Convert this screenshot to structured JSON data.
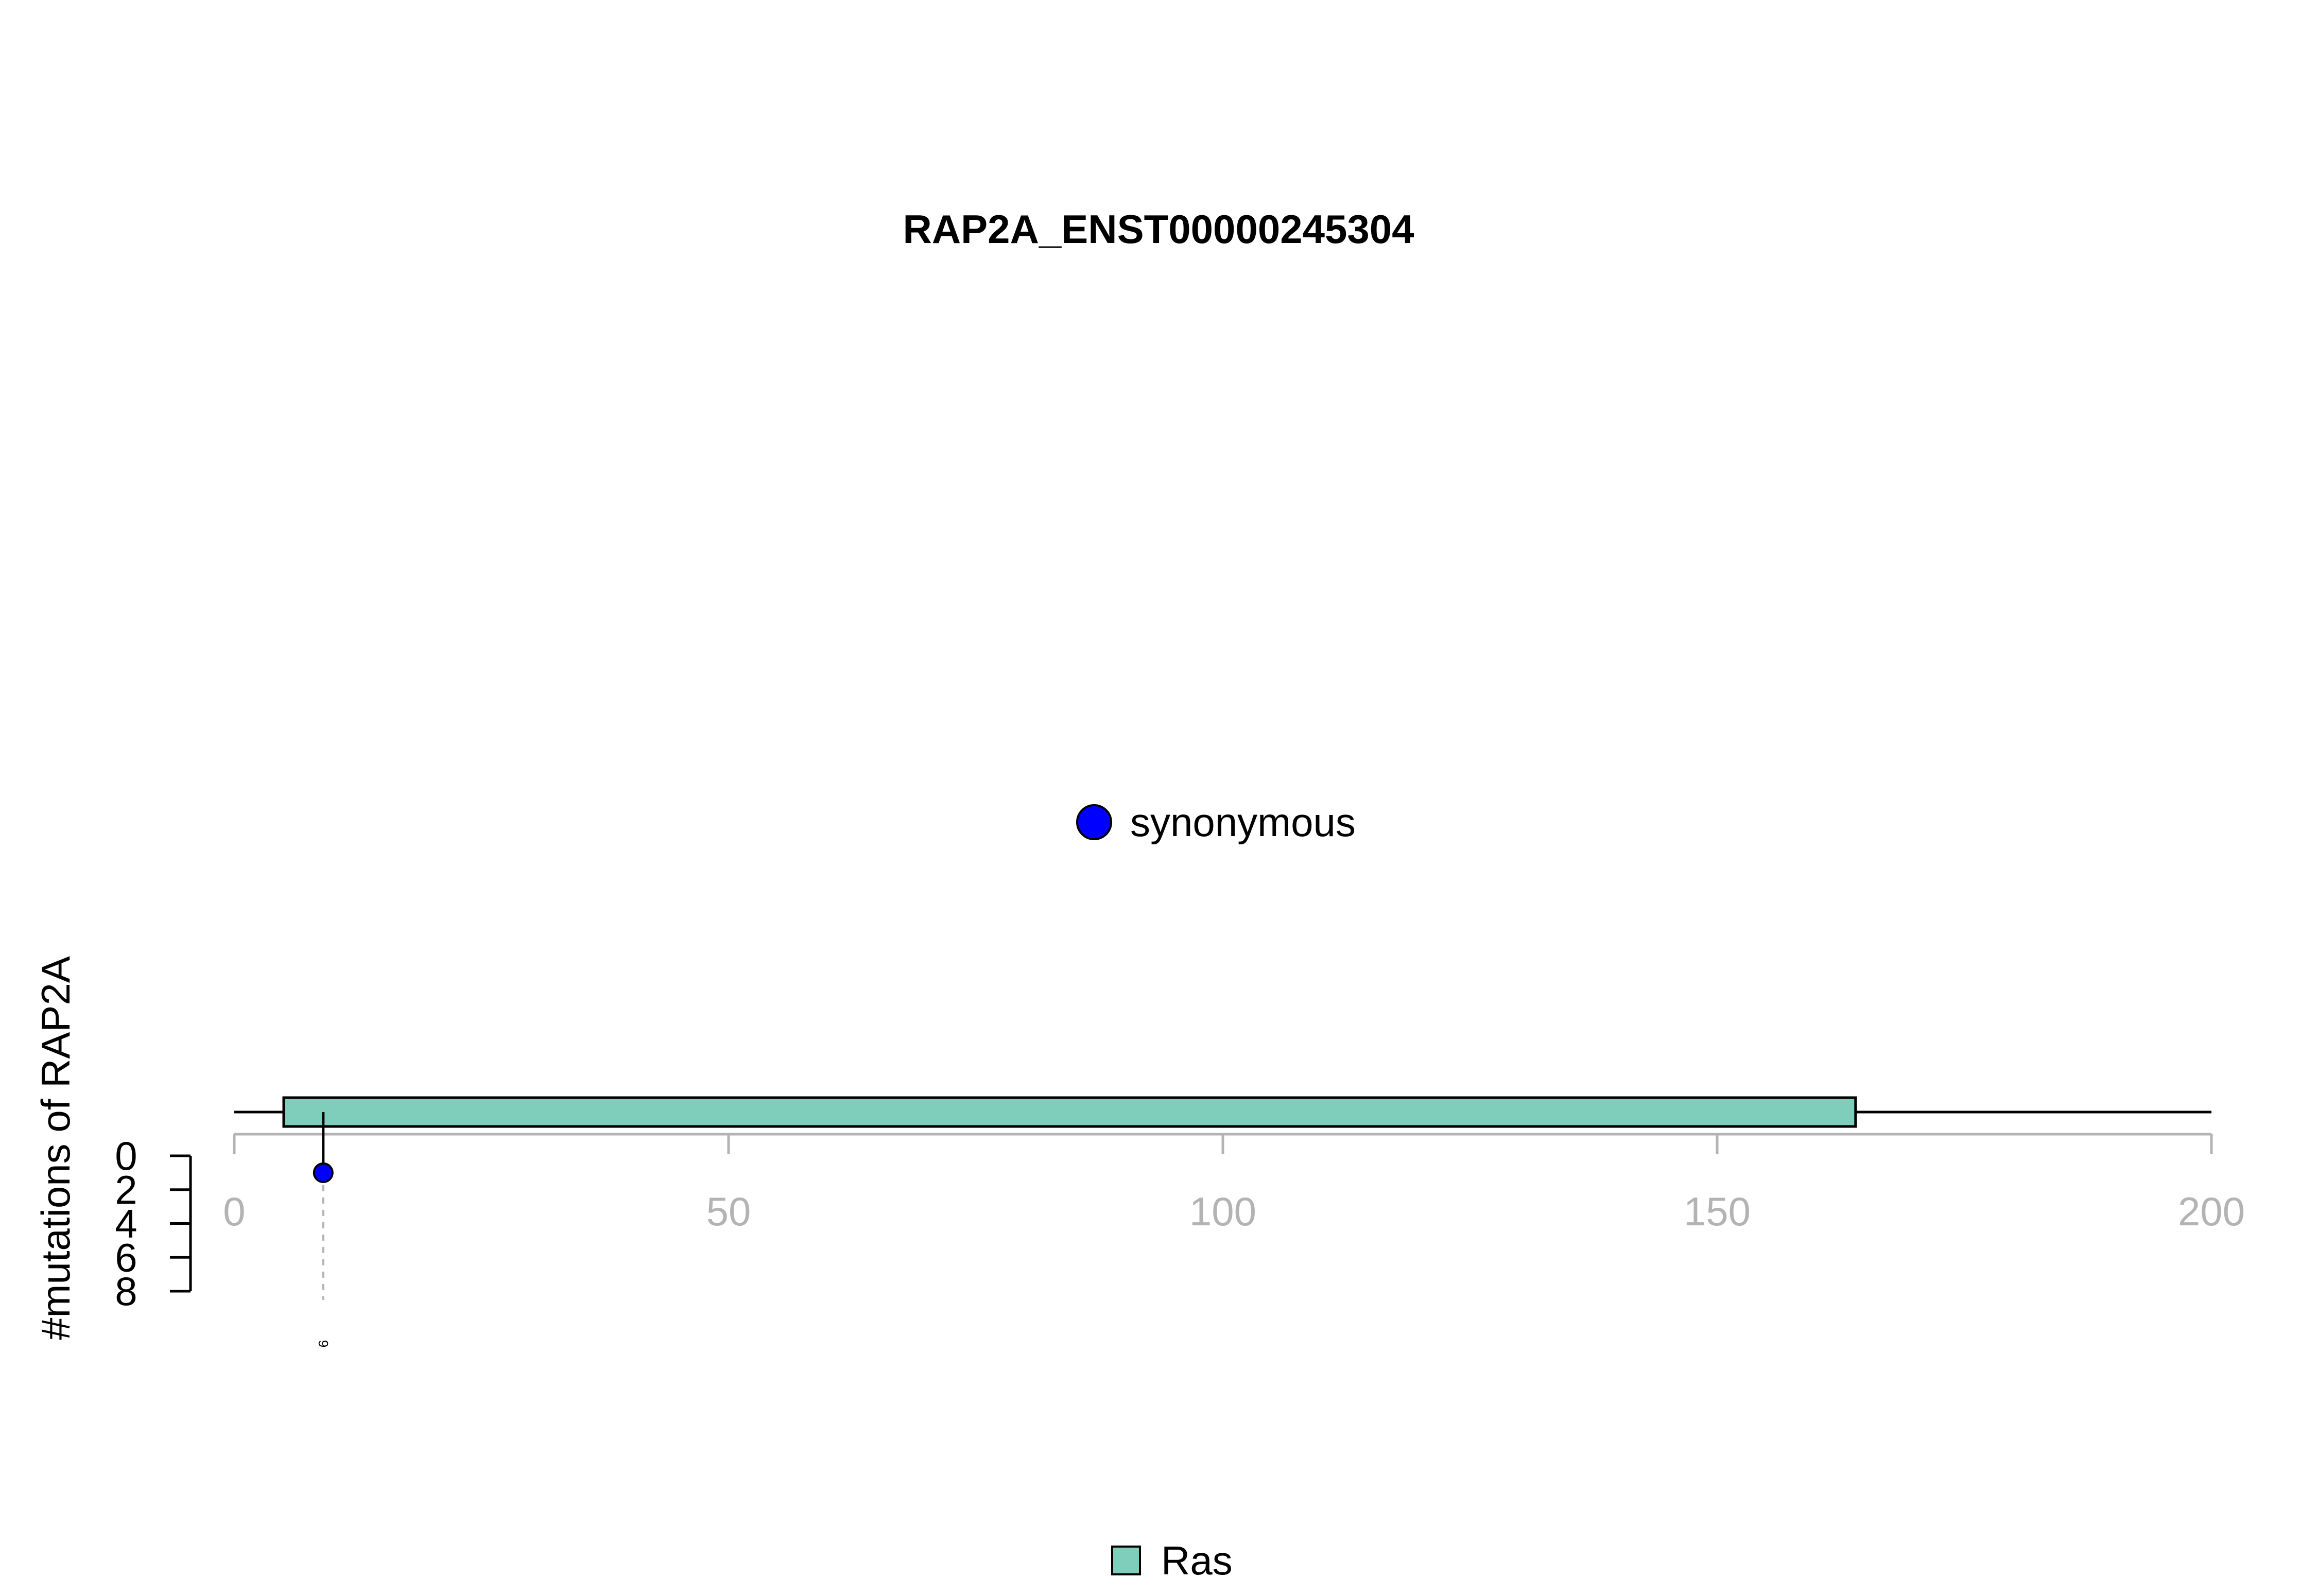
{
  "chart_data": {
    "type": "lollipop",
    "title": "RAP2A_ENST00000245304",
    "xlabel": "",
    "ylabel": "#mutations of RAP2A",
    "xlim": [
      0,
      200
    ],
    "ylim": [
      0,
      8
    ],
    "x_ticks": [
      "0",
      "50",
      "100",
      "150",
      "200"
    ],
    "y_ticks": [
      "0",
      "2",
      "4",
      "6",
      "8"
    ],
    "protein_length": 200,
    "domains": [
      {
        "name": "Ras",
        "start": 5,
        "end": 164,
        "color": "#7fcdbb"
      }
    ],
    "mutations": [
      {
        "position": 9,
        "count": 1,
        "type": "synonymous",
        "color": "#0000ff",
        "label": "9"
      }
    ],
    "mutation_legend": [
      {
        "label": "synonymous",
        "color": "#0000ff"
      }
    ],
    "domain_legend": [
      {
        "label": "Ras",
        "color": "#7fcdbb"
      }
    ]
  }
}
